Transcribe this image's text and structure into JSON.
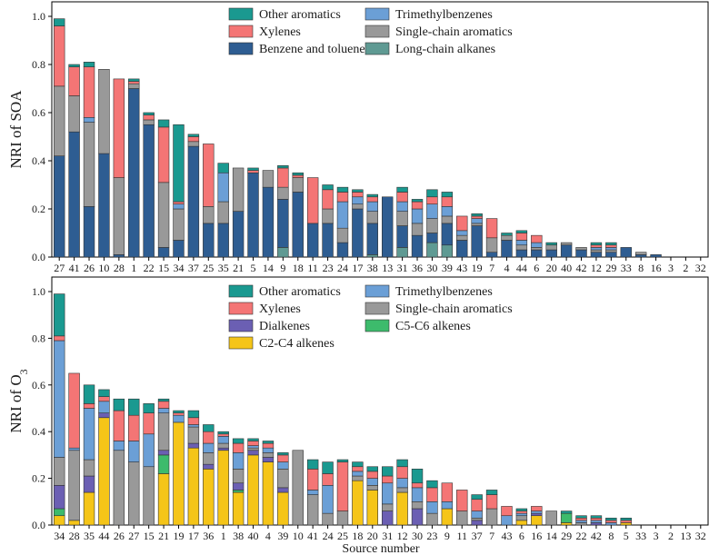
{
  "chart_data": [
    {
      "type": "bar",
      "stacked": true,
      "ylabel": "NRI of SOA",
      "xlabel": "",
      "ylim": [
        0,
        1.0
      ],
      "yticks": [
        "0.0",
        "0.2",
        "0.4",
        "0.6",
        "0.8",
        "1.0"
      ],
      "legend_position": "top-right",
      "legend_columns": [
        [
          "Other aromatics",
          "Xylenes",
          "Benzene and toluene"
        ],
        [
          "Trimethylbenzenes",
          "Single-chain aromatics",
          "Long-chain alkanes"
        ]
      ],
      "categories": [
        "27",
        "41",
        "26",
        "10",
        "28",
        "1",
        "22",
        "15",
        "34",
        "37",
        "25",
        "35",
        "21",
        "5",
        "14",
        "9",
        "18",
        "11",
        "23",
        "24",
        "17",
        "38",
        "13",
        "31",
        "36",
        "30",
        "39",
        "43",
        "19",
        "7",
        "4",
        "44",
        "6",
        "20",
        "40",
        "42",
        "12",
        "29",
        "33",
        "8",
        "16",
        "3",
        "2",
        "32"
      ],
      "series": [
        {
          "name": "Long-chain alkanes",
          "color": "#5f9a93",
          "values": [
            0,
            0,
            0,
            0,
            0,
            0,
            0,
            0,
            0,
            0,
            0,
            0,
            0,
            0,
            0,
            0.04,
            0,
            0,
            0,
            0,
            0,
            0.01,
            0,
            0.04,
            0,
            0.06,
            0.05,
            0,
            0,
            0,
            0,
            0,
            0,
            0,
            0,
            0,
            0,
            0,
            0,
            0,
            0,
            0,
            0,
            0
          ]
        },
        {
          "name": "Benzene and toluene",
          "color": "#2e5d92",
          "values": [
            0.42,
            0.52,
            0.21,
            0.43,
            0.01,
            0.7,
            0.55,
            0.04,
            0.07,
            0.46,
            0.14,
            0.14,
            0.19,
            0.35,
            0.29,
            0.2,
            0.27,
            0.14,
            0.14,
            0.06,
            0.2,
            0.13,
            0.25,
            0.09,
            0.09,
            0.04,
            0.09,
            0.07,
            0.13,
            0.02,
            0.07,
            0.03,
            0.03,
            0.03,
            0.05,
            0.03,
            0.02,
            0.02,
            0.04,
            0.01,
            0.01,
            0,
            0,
            0
          ]
        },
        {
          "name": "Single-chain aromatics",
          "color": "#999999",
          "values": [
            0.29,
            0.15,
            0.35,
            0.35,
            0.32,
            0.02,
            0.02,
            0.27,
            0.13,
            0.02,
            0.07,
            0.09,
            0.18,
            0,
            0.07,
            0.05,
            0.06,
            0,
            0.06,
            0.06,
            0.02,
            0.05,
            0,
            0.06,
            0.05,
            0.06,
            0.03,
            0.02,
            0.01,
            0.06,
            0.02,
            0.02,
            0.01,
            0.02,
            0.01,
            0.01,
            0.01,
            0.01,
            0,
            0.01,
            0,
            0,
            0,
            0
          ]
        },
        {
          "name": "Trimethylbenzenes",
          "color": "#6b9fd6",
          "values": [
            0,
            0,
            0.02,
            0,
            0,
            0,
            0,
            0,
            0.02,
            0,
            0,
            0.12,
            0,
            0,
            0,
            0,
            0,
            0,
            0,
            0.11,
            0.03,
            0.04,
            0,
            0.04,
            0.06,
            0.06,
            0.04,
            0.02,
            0.02,
            0,
            0,
            0.02,
            0.02,
            0,
            0,
            0,
            0.01,
            0.01,
            0,
            0,
            0,
            0,
            0,
            0
          ]
        },
        {
          "name": "Xylenes",
          "color": "#f47575",
          "values": [
            0.25,
            0.12,
            0.21,
            0,
            0.41,
            0.01,
            0.02,
            0.23,
            0.01,
            0.02,
            0.26,
            0,
            0,
            0.01,
            0,
            0.08,
            0.01,
            0.19,
            0.08,
            0.04,
            0.02,
            0.02,
            0,
            0.04,
            0.03,
            0.03,
            0.04,
            0.06,
            0.01,
            0.08,
            0,
            0.03,
            0.03,
            0,
            0,
            0,
            0.01,
            0.01,
            0,
            0,
            0,
            0,
            0,
            0
          ]
        },
        {
          "name": "Other aromatics",
          "color": "#1a9990",
          "values": [
            0.03,
            0.01,
            0.02,
            0,
            0,
            0.01,
            0.01,
            0.03,
            0.32,
            0.01,
            0,
            0.04,
            0,
            0.01,
            0,
            0.01,
            0.01,
            0,
            0.02,
            0.02,
            0.01,
            0.01,
            0,
            0.02,
            0.01,
            0.03,
            0.02,
            0,
            0.01,
            0,
            0.01,
            0.01,
            0,
            0.01,
            0,
            0,
            0.01,
            0.01,
            0,
            0,
            0,
            0,
            0,
            0
          ]
        }
      ]
    },
    {
      "type": "bar",
      "stacked": true,
      "ylabel": "NRI of O",
      "ylabel_sub": "3",
      "xlabel": "Source number",
      "ylim": [
        0,
        1.0
      ],
      "yticks": [
        "0.0",
        "0.2",
        "0.4",
        "0.6",
        "0.8",
        "1.0"
      ],
      "legend_position": "top-right",
      "legend_columns": [
        [
          "Other aromatics",
          "Xylenes",
          "Dialkenes",
          "C2-C4 alkenes"
        ],
        [
          "Trimethylbenzenes",
          "Single-chain aromatics",
          "C5-C6 alkenes"
        ]
      ],
      "categories": [
        "34",
        "28",
        "35",
        "44",
        "26",
        "27",
        "15",
        "21",
        "19",
        "17",
        "36",
        "1",
        "38",
        "40",
        "4",
        "39",
        "10",
        "41",
        "24",
        "25",
        "18",
        "20",
        "31",
        "12",
        "30",
        "23",
        "9",
        "11",
        "37",
        "7",
        "43",
        "6",
        "16",
        "14",
        "29",
        "22",
        "42",
        "8",
        "5",
        "33",
        "3",
        "2",
        "13",
        "32"
      ],
      "series": [
        {
          "name": "C2-C4 alkenes",
          "color": "#f5c518",
          "values": [
            0.04,
            0.02,
            0.14,
            0.46,
            0,
            0,
            0,
            0.22,
            0.44,
            0.33,
            0.24,
            0.32,
            0.14,
            0.3,
            0.27,
            0.14,
            0,
            0,
            0,
            0,
            0.19,
            0.15,
            0,
            0.14,
            0,
            0,
            0.07,
            0,
            0,
            0,
            0,
            0.02,
            0.04,
            0,
            0.01,
            0,
            0,
            0,
            0.01,
            0,
            0,
            0,
            0,
            0
          ]
        },
        {
          "name": "C5-C6 alkenes",
          "color": "#3dbb6c",
          "values": [
            0.03,
            0,
            0,
            0,
            0,
            0,
            0,
            0.08,
            0,
            0,
            0,
            0,
            0.01,
            0,
            0,
            0,
            0,
            0,
            0,
            0,
            0,
            0,
            0,
            0,
            0,
            0,
            0,
            0,
            0,
            0,
            0,
            0,
            0,
            0,
            0.04,
            0,
            0,
            0,
            0,
            0,
            0,
            0,
            0,
            0
          ]
        },
        {
          "name": "Dialkenes",
          "color": "#6b5fb3",
          "values": [
            0.1,
            0,
            0.07,
            0.02,
            0,
            0,
            0,
            0.02,
            0,
            0.02,
            0.02,
            0.01,
            0.03,
            0.02,
            0.02,
            0.02,
            0,
            0,
            0,
            0,
            0,
            0,
            0.06,
            0,
            0.07,
            0,
            0,
            0,
            0.02,
            0,
            0,
            0,
            0.01,
            0,
            0,
            0,
            0.01,
            0,
            0,
            0,
            0,
            0,
            0,
            0
          ]
        },
        {
          "name": "Single-chain aromatics",
          "color": "#999999",
          "values": [
            0.12,
            0.3,
            0.07,
            0,
            0.32,
            0.27,
            0.25,
            0.16,
            0,
            0.07,
            0.05,
            0.02,
            0.06,
            0.01,
            0.02,
            0.08,
            0.32,
            0.13,
            0.05,
            0.06,
            0.02,
            0.02,
            0.03,
            0.02,
            0.03,
            0.05,
            0,
            0.06,
            0.01,
            0.07,
            0,
            0.02,
            0,
            0.06,
            0,
            0.01,
            0,
            0,
            0,
            0,
            0,
            0,
            0,
            0
          ]
        },
        {
          "name": "Trimethylbenzenes",
          "color": "#6b9fd6",
          "values": [
            0.5,
            0.01,
            0.22,
            0.05,
            0.04,
            0.09,
            0.14,
            0.02,
            0.03,
            0.01,
            0.04,
            0.03,
            0.07,
            0.01,
            0.02,
            0.03,
            0,
            0.02,
            0.12,
            0,
            0.02,
            0.03,
            0.09,
            0.04,
            0.06,
            0.05,
            0.03,
            0,
            0.03,
            0,
            0.04,
            0.01,
            0.01,
            0,
            0,
            0.01,
            0.01,
            0.01,
            0,
            0,
            0,
            0,
            0,
            0
          ]
        },
        {
          "name": "Xylenes",
          "color": "#f47575",
          "values": [
            0.02,
            0.32,
            0.02,
            0.02,
            0.13,
            0.11,
            0.09,
            0.03,
            0.01,
            0.03,
            0.05,
            0.01,
            0.04,
            0.02,
            0.02,
            0.03,
            0,
            0.09,
            0.05,
            0.21,
            0.02,
            0.03,
            0.03,
            0.05,
            0.02,
            0.06,
            0.08,
            0.09,
            0.05,
            0.06,
            0.04,
            0.01,
            0.02,
            0,
            0,
            0.01,
            0.01,
            0.01,
            0.01,
            0,
            0,
            0,
            0,
            0
          ]
        },
        {
          "name": "Other aromatics",
          "color": "#1a9990",
          "values": [
            0.18,
            0,
            0.08,
            0.03,
            0.05,
            0.07,
            0.04,
            0.01,
            0.01,
            0.03,
            0.03,
            0.01,
            0.02,
            0.01,
            0.01,
            0.01,
            0,
            0.04,
            0.05,
            0.01,
            0.02,
            0.02,
            0.04,
            0.03,
            0.06,
            0.03,
            0,
            0,
            0.02,
            0.02,
            0,
            0.01,
            0,
            0,
            0.01,
            0.01,
            0.01,
            0.01,
            0.01,
            0,
            0,
            0,
            0,
            0
          ]
        }
      ]
    }
  ]
}
